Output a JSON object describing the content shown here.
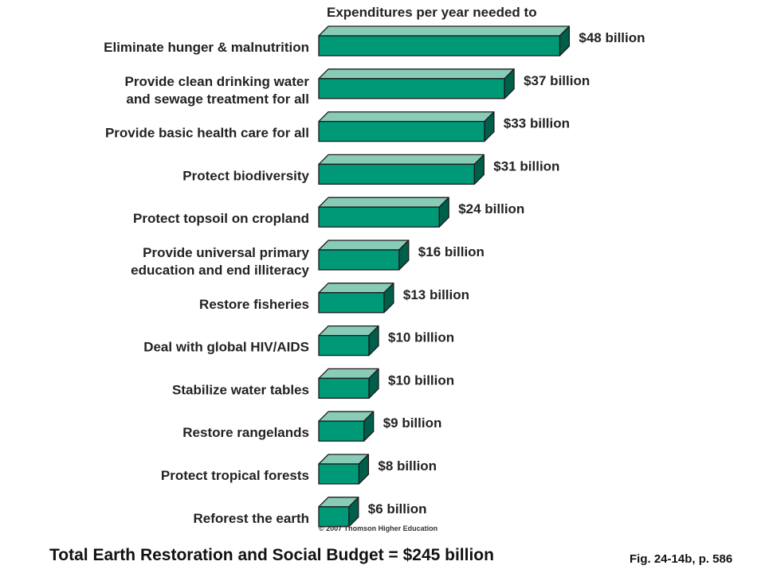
{
  "header": "Expenditures per year needed to",
  "copyright": "© 2007 Thomson Higher Education",
  "total_line": "Total Earth Restoration and Social Budget = $245 billion",
  "figure_ref": "Fig. 24-14b, p. 586",
  "colors": {
    "bar_front": "#009977",
    "bar_top": "#88ccb8",
    "bar_side": "#005f4a",
    "outline": "#1a1a1a"
  },
  "chart_data": {
    "type": "bar",
    "orientation": "horizontal",
    "style": "3d",
    "title": "Expenditures per year needed to",
    "unit": "billion dollars",
    "categories": [
      "Eliminate hunger & malnutrition",
      "Provide clean drinking water and sewage treatment for all",
      "Provide basic health care for all",
      "Protect biodiversity",
      "Protect topsoil on cropland",
      "Provide universal primary education and end illiteracy",
      "Restore fisheries",
      "Deal with global HIV/AIDS",
      "Stabilize water tables",
      "Restore rangelands",
      "Protect tropical forests",
      "Reforest the earth"
    ],
    "category_lines": [
      [
        "Eliminate hunger & malnutrition"
      ],
      [
        "Provide clean drinking water",
        "and sewage treatment for all"
      ],
      [
        "Provide basic health care for all"
      ],
      [
        "Protect biodiversity"
      ],
      [
        "Protect topsoil on cropland"
      ],
      [
        "Provide universal primary",
        "education and end illiteracy"
      ],
      [
        "Restore fisheries"
      ],
      [
        "Deal with global HIV/AIDS"
      ],
      [
        "Stabilize water tables"
      ],
      [
        "Restore rangelands"
      ],
      [
        "Protect tropical forests"
      ],
      [
        "Reforest the earth"
      ]
    ],
    "values": [
      48,
      37,
      33,
      31,
      24,
      16,
      13,
      10,
      10,
      9,
      8,
      6
    ],
    "value_labels": [
      "$48 billion",
      "$37 billion",
      "$33 billion",
      "$31 billion",
      "$24 billion",
      "$16 billion",
      "$13 billion",
      "$10 billion",
      "$10 billion",
      "$9 billion",
      "$8 billion",
      "$6 billion"
    ],
    "total": 245
  }
}
